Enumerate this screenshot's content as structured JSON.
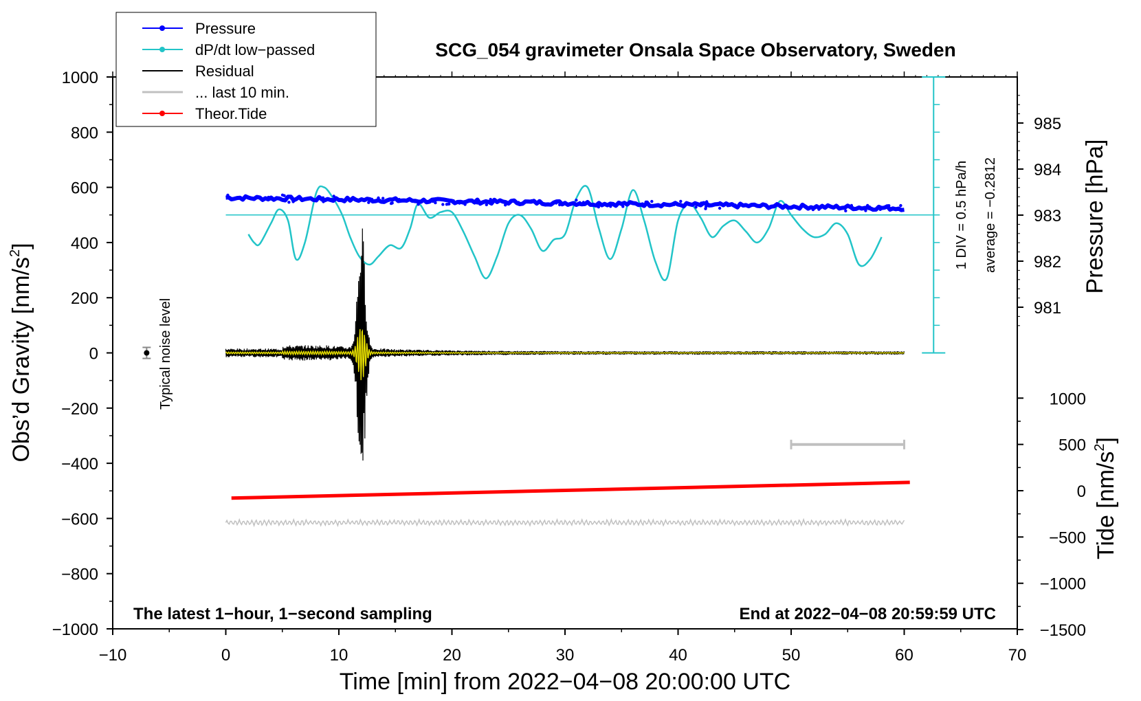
{
  "chart_data": {
    "type": "line",
    "title": "SCG_054 gravimeter Onsala Space Observatory, Sweden",
    "xlabel": "Time [min] from 2022−04−08 20:00:00 UTC",
    "xlim": [
      -10,
      70
    ],
    "x_ticks": [
      -10,
      0,
      10,
      20,
      30,
      40,
      50,
      60,
      70
    ],
    "x_tick_labels": [
      "−10",
      "0",
      "10",
      "20",
      "30",
      "40",
      "50",
      "60",
      "70"
    ],
    "left_axis": {
      "label_main": "Obs’d Gravity [nm/s",
      "label_sup": "2",
      "label_end": "]",
      "ylim": [
        -1000,
        1000
      ],
      "ticks": [
        -1000,
        -800,
        -600,
        -400,
        -200,
        0,
        200,
        400,
        600,
        800,
        1000
      ],
      "tick_labels": [
        "−1000",
        "−800",
        "−600",
        "−400",
        "−200",
        "0",
        "200",
        "400",
        "600",
        "800",
        "1000"
      ]
    },
    "pressure_axis": {
      "label": "Pressure [hPa]",
      "ticks": [
        981,
        982,
        983,
        984,
        985
      ],
      "tick_labels": [
        "981",
        "982",
        "983",
        "984",
        "985"
      ]
    },
    "tide_axis": {
      "label_main": "Tide [nm/s",
      "label_sup": "2",
      "label_end": "]",
      "ticks": [
        -1500,
        -1000,
        -500,
        0,
        500,
        1000
      ],
      "tick_labels": [
        "−1500",
        "−1000",
        "−500",
        "0",
        "500",
        "1000"
      ]
    },
    "legend": {
      "position": "top-left",
      "entries": [
        {
          "name": "Pressure",
          "color": "#0000ff",
          "marker": true
        },
        {
          "name": "dP/dt low−passed",
          "color": "#22c4c8",
          "marker": true
        },
        {
          "name": "Residual",
          "color": "#000000",
          "marker": false
        },
        {
          "name": "... last 10 min.",
          "color": "#c0c0c0",
          "marker": false
        },
        {
          "name": "Theor.Tide",
          "color": "#ff0000",
          "marker": true
        }
      ]
    },
    "series": [
      {
        "name": "Pressure",
        "axis": "pressure_hPa",
        "x_range": [
          0,
          60
        ],
        "start": 983.38,
        "end": 983.15
      },
      {
        "name": "dP/dt low−passed",
        "axis": "scale_div_0.5_hPa_per_h",
        "x": [
          2,
          2.5,
          3,
          4,
          4.7,
          5.5,
          6.2,
          7,
          8,
          8.7,
          9.5,
          10.3,
          11,
          11.8,
          12.7,
          13.5,
          14.5,
          15.5,
          16.3,
          17,
          18,
          19,
          20,
          21,
          22,
          23,
          24,
          25,
          26,
          27,
          28,
          29,
          30,
          31,
          32,
          33,
          34,
          35,
          36,
          37,
          38,
          39,
          40,
          41,
          42,
          43,
          44,
          45,
          46,
          47,
          48,
          49,
          50,
          51,
          52,
          53,
          54,
          55,
          56,
          57,
          58
        ],
        "y": [
          430,
          400,
          395,
          470,
          520,
          480,
          340,
          400,
          580,
          600,
          560,
          500,
          420,
          350,
          320,
          350,
          390,
          380,
          450,
          540,
          490,
          510,
          510,
          440,
          350,
          270,
          350,
          470,
          500,
          450,
          370,
          410,
          430,
          560,
          600,
          450,
          340,
          450,
          590,
          480,
          330,
          270,
          480,
          540,
          490,
          420,
          460,
          480,
          440,
          400,
          450,
          550,
          500,
          450,
          420,
          430,
          470,
          430,
          320,
          340,
          420
        ]
      },
      {
        "name": "Residual",
        "axis": "gravity_nm_s2",
        "x_range": [
          0,
          60
        ],
        "peak_time": 12,
        "peak_min": -460,
        "peak_max": 460
      },
      {
        "name": "... last 10 min.",
        "axis": "gravity_nm_s2",
        "x_range": [
          0,
          60
        ],
        "offset": -615
      },
      {
        "name": "Theor.Tide",
        "axis": "tide_nm_s2",
        "x": [
          0.5,
          60.5
        ],
        "y": [
          -80,
          90
        ]
      }
    ],
    "pressure_scale_bar": {
      "label": "1 DIV = 0.5 hPa/h",
      "average_label": "average = −0.2812",
      "reference_hPa": 983
    },
    "noise_annotation": {
      "label": "Typical noise level",
      "x": -7,
      "y": 0
    },
    "window_bar": {
      "x_start": 50,
      "x_end": 60
    },
    "footer_left": "The latest 1−hour, 1−second sampling",
    "footer_right": "End at 2022−04−08 20:59:59 UTC",
    "colors": {
      "pressure": "#0000ff",
      "dpdt": "#22c4c8",
      "residual": "#000000",
      "last10": "#c0c0c0",
      "tide": "#ff0000",
      "filtered": "#e8e000"
    }
  }
}
